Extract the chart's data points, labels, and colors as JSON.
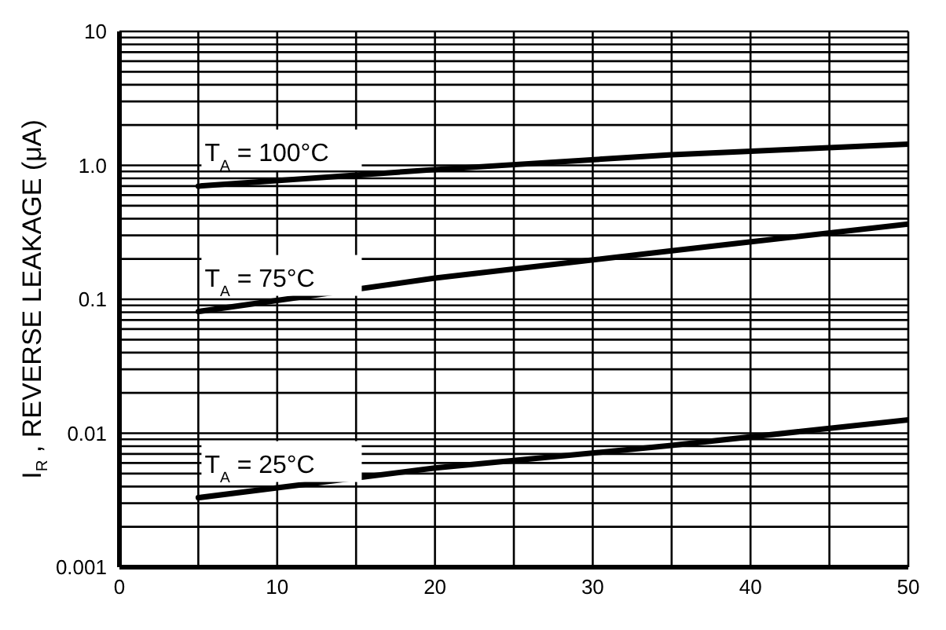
{
  "chart_data": {
    "type": "line",
    "ylabel": "I$_{R}$ , REVERSE LEAKAGE (μA)",
    "log": "y",
    "grid": true,
    "legend": false,
    "marker": "none",
    "line_style": "solid",
    "x": [
      5,
      20,
      35,
      50
    ],
    "series": [
      {
        "name": "T$_{A}$ = 100°C",
        "color": "#000000",
        "values": [
          0.7,
          0.93,
          1.2,
          1.44
        ]
      },
      {
        "name": "T$_{A}$ = 75°C",
        "color": "#000000",
        "values": [
          0.081,
          0.144,
          0.23,
          0.365
        ]
      },
      {
        "name": "T$_{A}$ = 25°C",
        "color": "#000000",
        "values": [
          0.0033,
          0.0055,
          0.0081,
          0.0126
        ]
      }
    ],
    "xlim": [
      0,
      50
    ],
    "xticks": [
      0,
      {
        "value": 5,
        "label": null
      },
      10,
      {
        "value": 15,
        "label": null
      },
      20,
      {
        "value": 25,
        "label": null
      },
      30,
      {
        "value": 35,
        "label": null
      },
      40,
      {
        "value": 45,
        "label": null
      },
      50
    ],
    "ylim": [
      0.001,
      10
    ],
    "yticks": [
      0.001,
      {
        "value": 0.002,
        "label": null
      },
      {
        "value": 0.003,
        "label": null
      },
      {
        "value": 0.004,
        "label": null
      },
      {
        "value": 0.005,
        "label": null
      },
      {
        "value": 0.006,
        "label": null
      },
      {
        "value": 0.007,
        "label": null
      },
      {
        "value": 0.008,
        "label": null
      },
      {
        "value": 0.009,
        "label": null
      },
      0.01,
      {
        "value": 0.02,
        "label": null
      },
      {
        "value": 0.03,
        "label": null
      },
      {
        "value": 0.04,
        "label": null
      },
      {
        "value": 0.05,
        "label": null
      },
      {
        "value": 0.06,
        "label": null
      },
      {
        "value": 0.07,
        "label": null
      },
      {
        "value": 0.08,
        "label": null
      },
      {
        "value": 0.09,
        "label": null
      },
      0.1,
      {
        "value": 0.2,
        "label": null
      },
      {
        "value": 0.3,
        "label": null
      },
      {
        "value": 0.4,
        "label": null
      },
      {
        "value": 0.5,
        "label": null
      },
      {
        "value": 0.6,
        "label": null
      },
      {
        "value": 0.7,
        "label": null
      },
      {
        "value": 0.8,
        "label": null
      },
      {
        "value": 0.9,
        "label": null
      },
      {
        "value": 1,
        "label": "1.0"
      },
      {
        "value": 2,
        "label": null
      },
      {
        "value": 3,
        "label": null
      },
      {
        "value": 4,
        "label": null
      },
      {
        "value": 5,
        "label": null
      },
      {
        "value": 6,
        "label": null
      },
      {
        "value": 7,
        "label": null
      },
      {
        "value": 8,
        "label": null
      },
      {
        "value": 9,
        "label": null
      },
      10
    ]
  }
}
